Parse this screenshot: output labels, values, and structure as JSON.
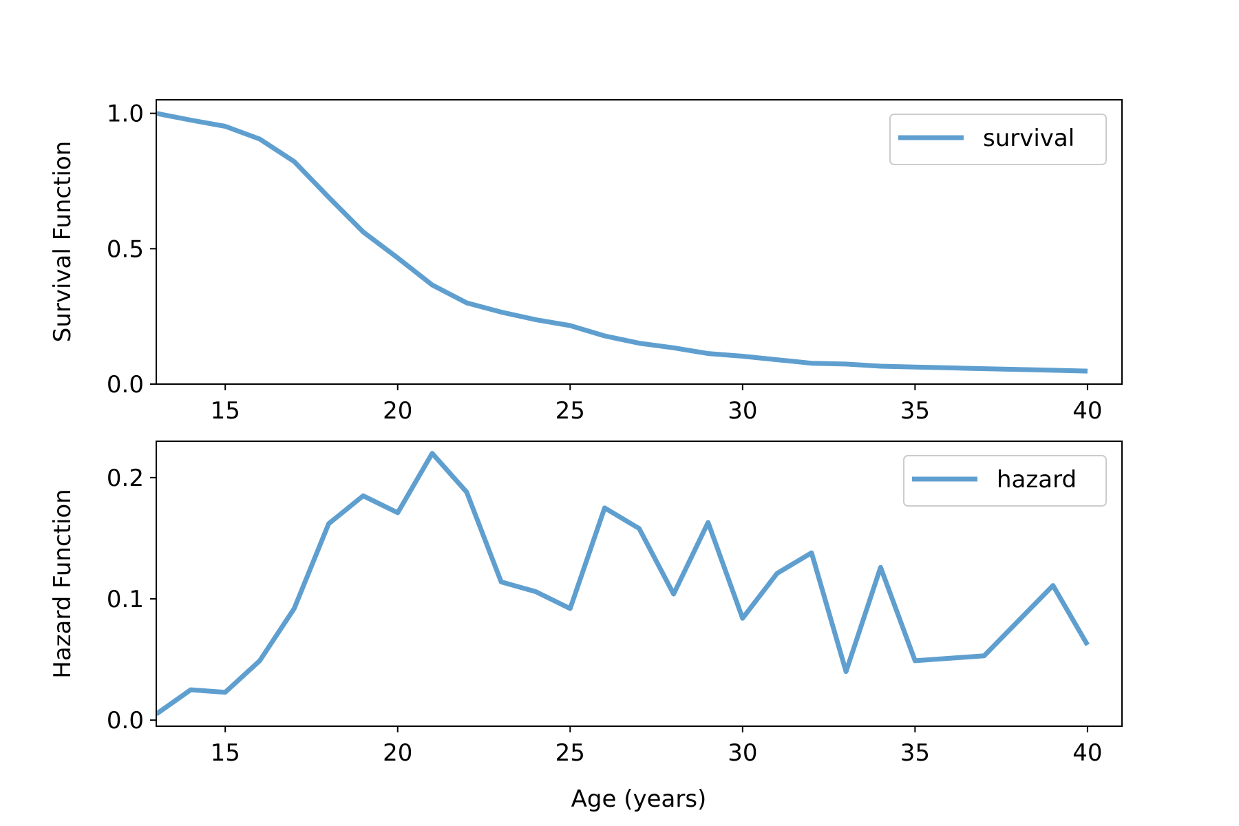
{
  "colors": {
    "line": "#5f9fcf"
  },
  "chart_data": [
    {
      "type": "line",
      "ylabel": "Survival Function",
      "xlabel": "",
      "xlim": [
        13,
        41
      ],
      "ylim": [
        0,
        1.05
      ],
      "xticks": [
        15,
        20,
        25,
        30,
        35,
        40
      ],
      "xtick_labels": [
        "15",
        "20",
        "25",
        "30",
        "35",
        "40"
      ],
      "yticks": [
        0.0,
        0.5,
        1.0
      ],
      "ytick_labels": [
        "0.0",
        "0.5",
        "1.0"
      ],
      "legend": "upper right",
      "series": [
        {
          "name": "survival",
          "x": [
            13,
            14,
            15,
            16,
            17,
            18,
            19,
            20,
            21,
            22,
            23,
            24,
            25,
            26,
            27,
            28,
            29,
            30,
            31,
            32,
            33,
            34,
            35,
            36,
            37,
            38,
            39,
            40
          ],
          "y": [
            1.0,
            0.975,
            0.952,
            0.905,
            0.822,
            0.69,
            0.562,
            0.466,
            0.366,
            0.3,
            0.266,
            0.238,
            0.216,
            0.178,
            0.151,
            0.134,
            0.113,
            0.103,
            0.09,
            0.077,
            0.074,
            0.066,
            0.063,
            0.06,
            0.057,
            0.054,
            0.051,
            0.048
          ]
        }
      ]
    },
    {
      "type": "line",
      "ylabel": "Hazard Function",
      "xlabel": "Age (years)",
      "xlim": [
        13,
        41
      ],
      "ylim": [
        -0.005,
        0.23
      ],
      "xticks": [
        15,
        20,
        25,
        30,
        35,
        40
      ],
      "xtick_labels": [
        "15",
        "20",
        "25",
        "30",
        "35",
        "40"
      ],
      "yticks": [
        0.0,
        0.1,
        0.2
      ],
      "ytick_labels": [
        "0.0",
        "0.1",
        "0.2"
      ],
      "legend": "upper right",
      "series": [
        {
          "name": "hazard",
          "x": [
            13,
            14,
            15,
            16,
            17,
            18,
            19,
            20,
            21,
            22,
            23,
            24,
            25,
            26,
            27,
            28,
            29,
            30,
            31,
            32,
            33,
            34,
            35,
            37,
            39,
            40
          ],
          "y": [
            0.005,
            0.025,
            0.023,
            0.049,
            0.092,
            0.162,
            0.185,
            0.171,
            0.22,
            0.188,
            0.114,
            0.106,
            0.092,
            0.175,
            0.158,
            0.104,
            0.163,
            0.084,
            0.121,
            0.138,
            0.04,
            0.126,
            0.049,
            0.053,
            0.111,
            0.062
          ]
        }
      ]
    }
  ]
}
